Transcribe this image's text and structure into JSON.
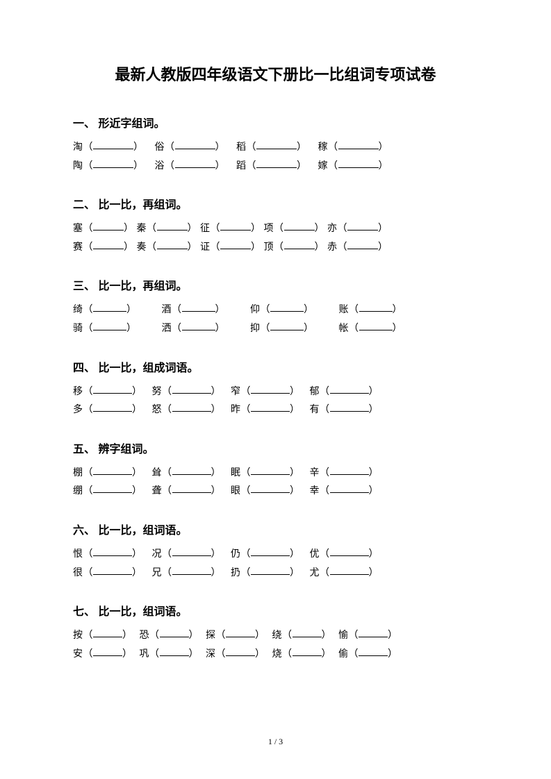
{
  "title": "最新人教版四年级语文下册比一比组词专项试卷",
  "footer": "1 / 3",
  "sections": [
    {
      "num": "一、",
      "heading": "形近字组词。",
      "blankWidth": 58,
      "gapAfter": 16,
      "rows": [
        [
          "淘",
          "俗",
          "稻",
          "稼"
        ],
        [
          "陶",
          "浴",
          "蹈",
          "嫁"
        ]
      ]
    },
    {
      "num": "二、",
      "heading": "比一比，再组词。",
      "blankWidth": 44,
      "gapAfter": 4,
      "rows": [
        [
          "塞",
          "秦",
          "征",
          "项",
          "亦"
        ],
        [
          "赛",
          "奏",
          "证",
          "顶",
          "赤"
        ]
      ]
    },
    {
      "num": "三、",
      "heading": "比一比，再组词。",
      "blankWidth": 48,
      "gapAfter": 36,
      "rows": [
        [
          "绮",
          "酒",
          "仰",
          "账"
        ],
        [
          "骑",
          "洒",
          "抑",
          "帐"
        ]
      ]
    },
    {
      "num": "四、",
      "heading": "比一比，组成词语。",
      "blankWidth": 56,
      "gapAfter": 14,
      "rows": [
        [
          "移",
          "努",
          "窄",
          "郁"
        ],
        [
          "多",
          "怒",
          "昨",
          "有"
        ]
      ]
    },
    {
      "num": "五、",
      "heading": "辨字组词。",
      "blankWidth": 56,
      "gapAfter": 14,
      "rows": [
        [
          "棚",
          "耸",
          "眠",
          "辛"
        ],
        [
          "绷",
          "聋",
          "眼",
          "幸"
        ]
      ]
    },
    {
      "num": "六、",
      "heading": "比一比，组词语。",
      "blankWidth": 56,
      "gapAfter": 14,
      "rows": [
        [
          "恨",
          "况",
          "仍",
          "优"
        ],
        [
          "很",
          "兄",
          "扔",
          "尤"
        ]
      ]
    },
    {
      "num": "七、",
      "heading": "比一比，组词语。",
      "blankWidth": 42,
      "gapAfter": 10,
      "rows": [
        [
          "按",
          "恐",
          "探",
          "绕",
          "愉"
        ],
        [
          "安",
          "巩",
          "深",
          "烧",
          "偷"
        ]
      ]
    }
  ]
}
